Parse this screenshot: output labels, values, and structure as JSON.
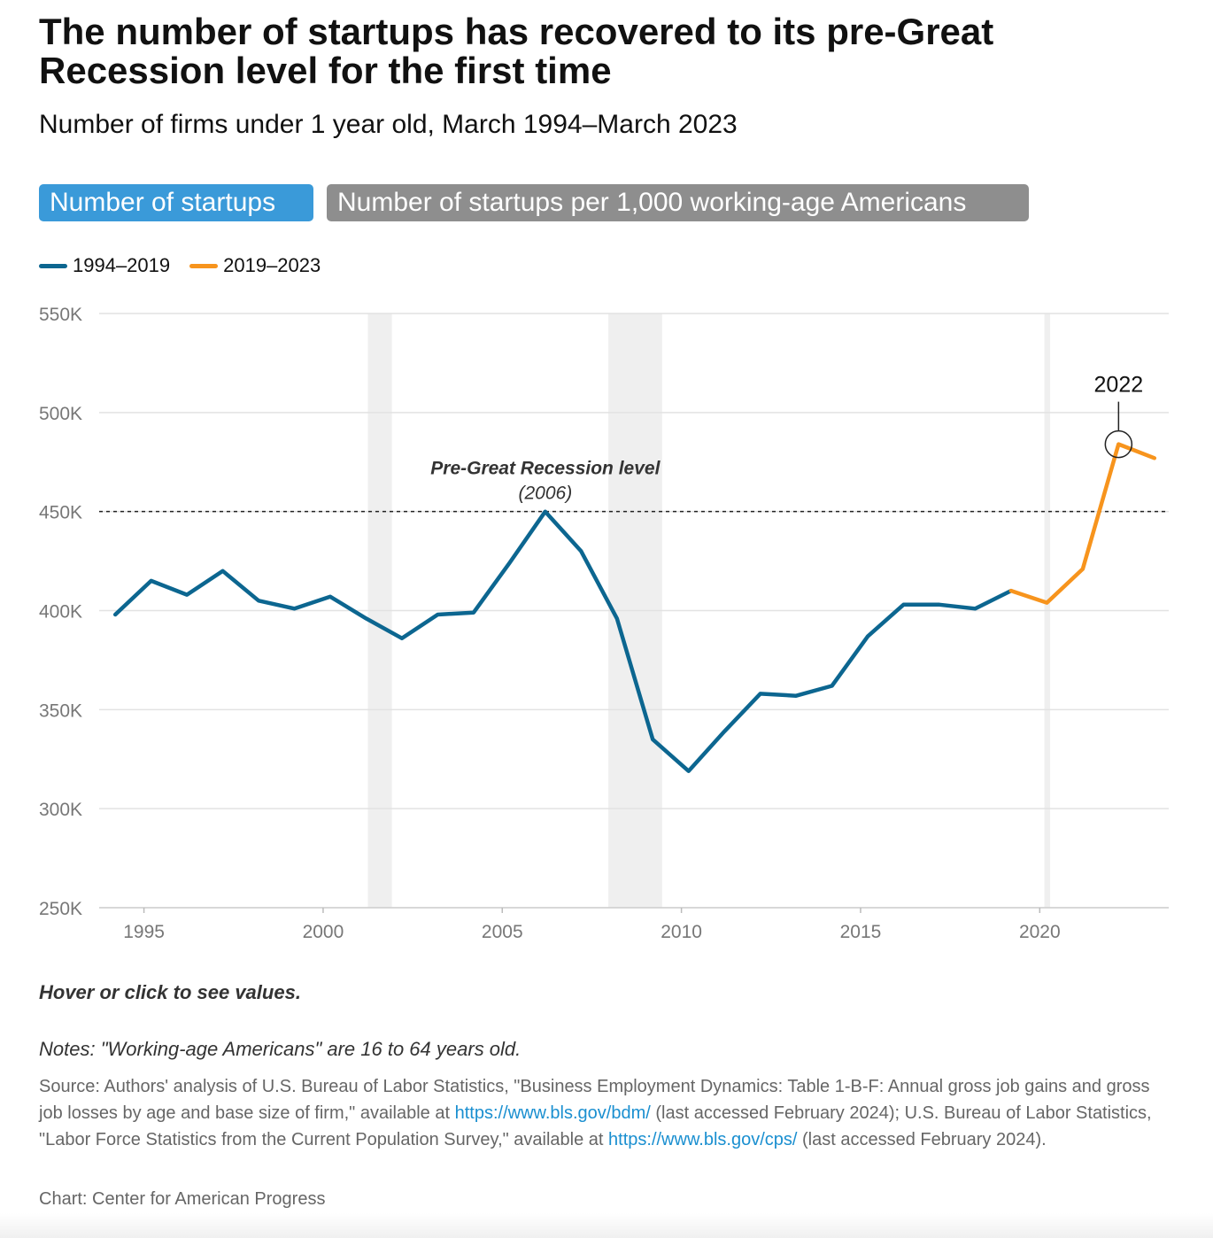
{
  "header": {
    "title": "The number of startups has recovered to its pre-Great Recession level for the first time",
    "subtitle": "Number of firms under 1 year old, March 1994–March 2023"
  },
  "tabs": [
    {
      "label": "Number of startups",
      "active": true,
      "color": "#3a9ad9"
    },
    {
      "label": "Number of startups per 1,000 working-age Americans",
      "active": false,
      "color": "#8e8e8e"
    }
  ],
  "legend": [
    {
      "label": "1994–2019",
      "color": "#0c6690"
    },
    {
      "label": "2019–2023",
      "color": "#f7941d"
    }
  ],
  "chart_data": {
    "type": "line",
    "x_ticks": [
      1995,
      2000,
      2005,
      2010,
      2015,
      2020
    ],
    "y_ticks": [
      250000,
      300000,
      350000,
      400000,
      450000,
      500000,
      550000
    ],
    "y_tick_labels": [
      "250K",
      "300K",
      "350K",
      "400K",
      "450K",
      "500K",
      "550K"
    ],
    "ylim": [
      250000,
      550000
    ],
    "xlim": [
      1993.75,
      2023.6
    ],
    "grid": true,
    "series": [
      {
        "name": "1994–2019",
        "color": "#0c6690",
        "x": [
          1994.2,
          1995.2,
          1996.2,
          1997.2,
          1998.2,
          1999.2,
          2000.2,
          2001.2,
          2002.2,
          2003.2,
          2004.2,
          2005.2,
          2006.2,
          2007.2,
          2008.2,
          2009.2,
          2010.2,
          2011.2,
          2012.2,
          2013.2,
          2014.2,
          2015.2,
          2016.2,
          2017.2,
          2018.2,
          2019.2
        ],
        "y": [
          398000,
          415000,
          408000,
          420000,
          405000,
          401000,
          407000,
          396000,
          386000,
          398000,
          399000,
          424000,
          450000,
          430000,
          396000,
          335000,
          319000,
          339000,
          358000,
          357000,
          362000,
          387000,
          403000,
          403000,
          401000,
          410000
        ]
      },
      {
        "name": "2019–2023",
        "color": "#f7941d",
        "x": [
          2019.2,
          2020.2,
          2021.2,
          2022.2,
          2023.2
        ],
        "y": [
          410000,
          404000,
          421000,
          484000,
          477000
        ]
      }
    ],
    "recession_bands": [
      [
        2001.25,
        2001.92
      ],
      [
        2007.96,
        2009.46
      ],
      [
        2020.13,
        2020.29
      ]
    ],
    "reference_line": {
      "y": 450000,
      "label": "Pre-Great Recession level",
      "sublabel": "(2006)",
      "x": 2006.2
    },
    "callout": {
      "label": "2022",
      "x": 2022.2,
      "y": 484000
    }
  },
  "footer": {
    "hint": "Hover or click to see values.",
    "notes": "Notes: \"Working-age Americans\" are 16 to 64 years old.",
    "source_part1": "Source: Authors' analysis of U.S. Bureau of Labor Statistics, \"Business Employment Dynamics: Table 1-B-F: Annual gross job gains and gross job losses by age and base size of firm,\" available at ",
    "source_link1": "https://www.bls.gov/bdm/",
    "source_part2": " (last accessed February 2024); U.S. Bureau of Labor Statistics, \"Labor Force Statistics from the Current Population Survey,\" available at ",
    "source_link2": "https://www.bls.gov/cps/",
    "source_part3": " (last accessed February 2024).",
    "credit": "Chart: Center for American Progress"
  }
}
